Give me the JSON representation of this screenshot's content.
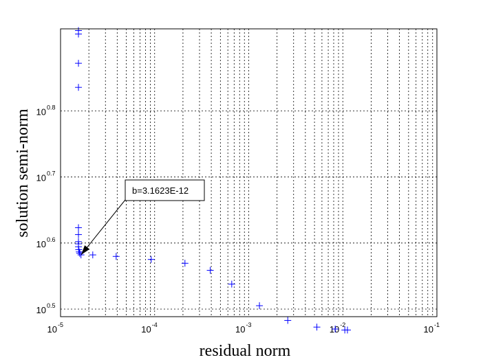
{
  "chart_data": {
    "type": "scatter",
    "title": "",
    "xlabel": "residual norm",
    "ylabel": "solution semi-norm",
    "x_scale": "log",
    "y_scale": "log",
    "xlim": [
      1e-05,
      0.1
    ],
    "ylim": [
      3.08,
      8.4
    ],
    "grid": true,
    "marker": "+",
    "marker_color": "#0000ff",
    "x_ticks": [
      {
        "base": "10",
        "exp": "-5",
        "value": 1e-05
      },
      {
        "base": "10",
        "exp": "-4",
        "value": 0.0001
      },
      {
        "base": "10",
        "exp": "-3",
        "value": 0.001
      },
      {
        "base": "10",
        "exp": "-2",
        "value": 0.01
      },
      {
        "base": "10",
        "exp": "-1",
        "value": 0.1
      }
    ],
    "y_ticks": [
      {
        "base": "10",
        "exp": "0.5",
        "value": 3.1623
      },
      {
        "base": "10",
        "exp": "0.6",
        "value": 3.9811
      },
      {
        "base": "10",
        "exp": "0.7",
        "value": 5.0119
      },
      {
        "base": "10",
        "exp": "0.8",
        "value": 6.3096
      }
    ],
    "points": [
      {
        "x": 1.55e-05,
        "y": 8.35
      },
      {
        "x": 1.55e-05,
        "y": 8.25
      },
      {
        "x": 1.55e-05,
        "y": 7.45
      },
      {
        "x": 1.55e-05,
        "y": 6.85
      },
      {
        "x": 1.55e-05,
        "y": 4.2
      },
      {
        "x": 1.55e-05,
        "y": 4.1
      },
      {
        "x": 1.55e-05,
        "y": 4.0
      },
      {
        "x": 1.55e-05,
        "y": 3.97
      },
      {
        "x": 1.55e-05,
        "y": 3.93
      },
      {
        "x": 1.56e-05,
        "y": 3.89
      },
      {
        "x": 1.58e-05,
        "y": 3.86
      },
      {
        "x": 1.6e-05,
        "y": 3.84
      },
      {
        "x": 1.65e-05,
        "y": 3.82
      },
      {
        "x": 2.2e-05,
        "y": 3.82
      },
      {
        "x": 3.9e-05,
        "y": 3.8
      },
      {
        "x": 9.2e-05,
        "y": 3.76
      },
      {
        "x": 0.00021,
        "y": 3.71
      },
      {
        "x": 0.00039,
        "y": 3.62
      },
      {
        "x": 0.00066,
        "y": 3.45
      },
      {
        "x": 0.0013,
        "y": 3.2
      },
      {
        "x": 0.0026,
        "y": 3.04
      },
      {
        "x": 0.0053,
        "y": 2.97
      },
      {
        "x": 0.0083,
        "y": 2.95
      },
      {
        "x": 0.0105,
        "y": 2.94
      },
      {
        "x": 0.0112,
        "y": 2.94
      }
    ],
    "annotation": {
      "text": "b=3.1623E-12",
      "target": {
        "x": 1.6e-05,
        "y": 3.84
      }
    }
  }
}
